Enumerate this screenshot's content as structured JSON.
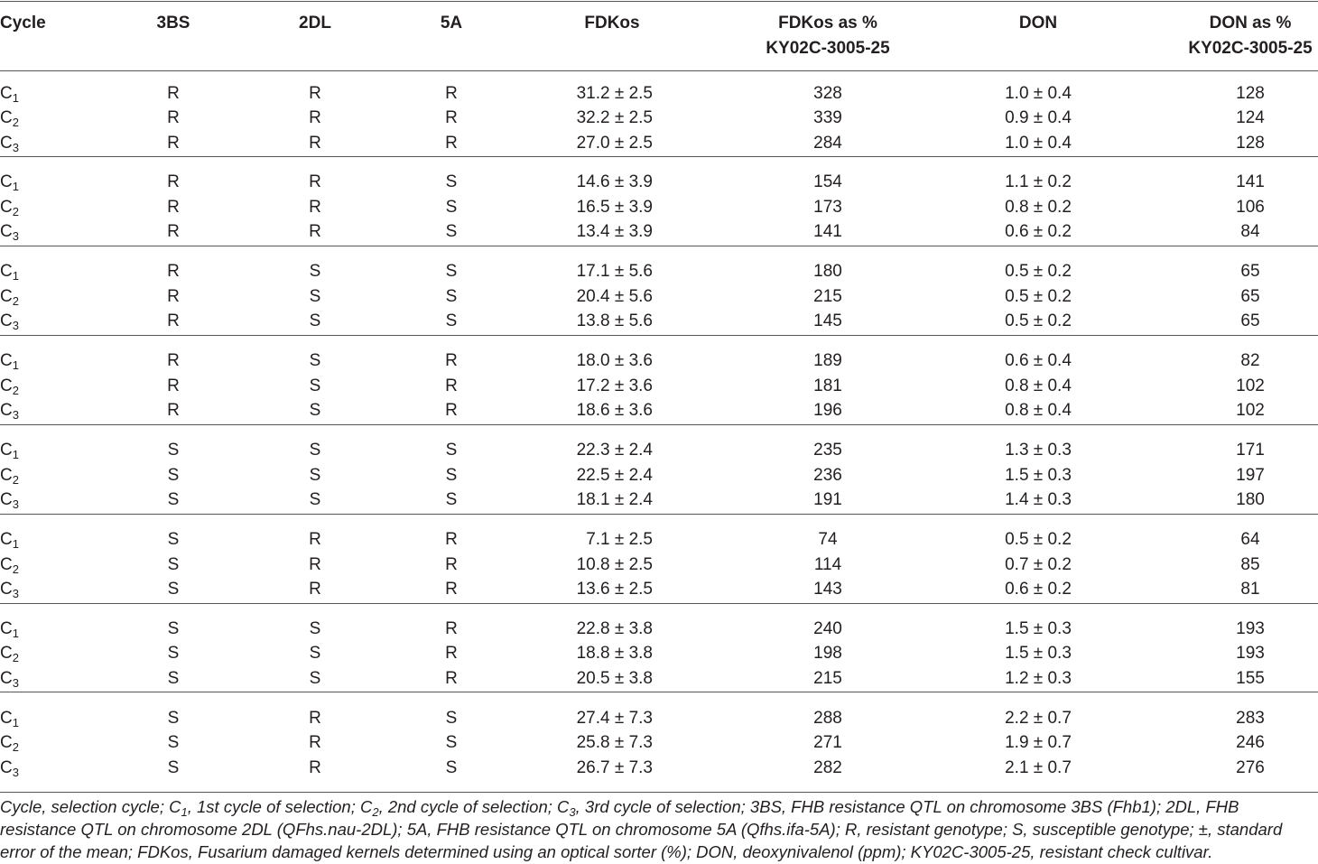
{
  "table": {
    "header": [
      "Cycle",
      "3BS",
      "2DL",
      "5A",
      "FDKos",
      [
        "FDKos as %",
        "KY02C-3005-25"
      ],
      "DON",
      [
        "DON as %",
        "KY02C-3005-25"
      ]
    ],
    "groups": [
      [
        {
          "cycle": {
            "base": "C",
            "sub": "1"
          },
          "cells": [
            "R",
            "R",
            "R",
            "31.2 ± 2.5",
            "328",
            "1.0 ± 0.4",
            "128"
          ]
        },
        {
          "cycle": {
            "base": "C",
            "sub": "2"
          },
          "cells": [
            "R",
            "R",
            "R",
            "32.2 ± 2.5",
            "339",
            "0.9 ± 0.4",
            "124"
          ]
        },
        {
          "cycle": {
            "base": "C",
            "sub": "3"
          },
          "cells": [
            "R",
            "R",
            "R",
            "27.0 ± 2.5",
            "284",
            "1.0 ± 0.4",
            "128"
          ]
        }
      ],
      [
        {
          "cycle": {
            "base": "C",
            "sub": "1"
          },
          "cells": [
            "R",
            "R",
            "S",
            "14.6 ± 3.9",
            "154",
            "1.1 ± 0.2",
            "141"
          ]
        },
        {
          "cycle": {
            "base": "C",
            "sub": "2"
          },
          "cells": [
            "R",
            "R",
            "S",
            "16.5 ± 3.9",
            "173",
            "0.8 ± 0.2",
            "106"
          ]
        },
        {
          "cycle": {
            "base": "C",
            "sub": "3"
          },
          "cells": [
            "R",
            "R",
            "S",
            "13.4 ± 3.9",
            "141",
            "0.6 ± 0.2",
            "84"
          ]
        }
      ],
      [
        {
          "cycle": {
            "base": "C",
            "sub": "1"
          },
          "cells": [
            "R",
            "S",
            "S",
            "17.1 ± 5.6",
            "180",
            "0.5 ± 0.2",
            "65"
          ]
        },
        {
          "cycle": {
            "base": "C",
            "sub": "2"
          },
          "cells": [
            "R",
            "S",
            "S",
            "20.4 ± 5.6",
            "215",
            "0.5 ± 0.2",
            "65"
          ]
        },
        {
          "cycle": {
            "base": "C",
            "sub": "3"
          },
          "cells": [
            "R",
            "S",
            "S",
            "13.8 ± 5.6",
            "145",
            "0.5 ± 0.2",
            "65"
          ]
        }
      ],
      [
        {
          "cycle": {
            "base": "C",
            "sub": "1"
          },
          "cells": [
            "R",
            "S",
            "R",
            "18.0 ± 3.6",
            "189",
            "0.6 ± 0.4",
            "82"
          ]
        },
        {
          "cycle": {
            "base": "C",
            "sub": "2"
          },
          "cells": [
            "R",
            "S",
            "R",
            "17.2 ± 3.6",
            "181",
            "0.8 ± 0.4",
            "102"
          ]
        },
        {
          "cycle": {
            "base": "C",
            "sub": "3"
          },
          "cells": [
            "R",
            "S",
            "R",
            "18.6 ± 3.6",
            "196",
            "0.8 ± 0.4",
            "102"
          ]
        }
      ],
      [
        {
          "cycle": {
            "base": "C",
            "sub": "1"
          },
          "cells": [
            "S",
            "S",
            "S",
            "22.3 ± 2.4",
            "235",
            "1.3 ± 0.3",
            "171"
          ]
        },
        {
          "cycle": {
            "base": "C",
            "sub": "2"
          },
          "cells": [
            "S",
            "S",
            "S",
            "22.5 ± 2.4",
            "236",
            "1.5 ± 0.3",
            "197"
          ]
        },
        {
          "cycle": {
            "base": "C",
            "sub": "3"
          },
          "cells": [
            "S",
            "S",
            "S",
            "18.1 ± 2.4",
            "191",
            "1.4 ± 0.3",
            "180"
          ]
        }
      ],
      [
        {
          "cycle": {
            "base": "C",
            "sub": "1"
          },
          "cells": [
            "S",
            "R",
            "R",
            "7.1 ± 2.5",
            "74",
            "0.5 ± 0.2",
            "64"
          ]
        },
        {
          "cycle": {
            "base": "C",
            "sub": "2"
          },
          "cells": [
            "S",
            "R",
            "R",
            "10.8 ± 2.5",
            "114",
            "0.7 ± 0.2",
            "85"
          ]
        },
        {
          "cycle": {
            "base": "C",
            "sub": "3"
          },
          "cells": [
            "S",
            "R",
            "R",
            "13.6 ± 2.5",
            "143",
            "0.6 ± 0.2",
            "81"
          ]
        }
      ],
      [
        {
          "cycle": {
            "base": "C",
            "sub": "1"
          },
          "cells": [
            "S",
            "S",
            "R",
            "22.8 ± 3.8",
            "240",
            "1.5 ± 0.3",
            "193"
          ]
        },
        {
          "cycle": {
            "base": "C",
            "sub": "2"
          },
          "cells": [
            "S",
            "S",
            "R",
            "18.8 ± 3.8",
            "198",
            "1.5 ± 0.3",
            "193"
          ]
        },
        {
          "cycle": {
            "base": "C",
            "sub": "3"
          },
          "cells": [
            "S",
            "S",
            "R",
            "20.5 ± 3.8",
            "215",
            "1.2 ± 0.3",
            "155"
          ]
        }
      ],
      [
        {
          "cycle": {
            "base": "C",
            "sub": "1"
          },
          "cells": [
            "S",
            "R",
            "S",
            "27.4 ± 7.3",
            "288",
            "2.2 ± 0.7",
            "283"
          ]
        },
        {
          "cycle": {
            "base": "C",
            "sub": "2"
          },
          "cells": [
            "S",
            "R",
            "S",
            "25.8 ± 7.3",
            "271",
            "1.9 ± 0.7",
            "246"
          ]
        },
        {
          "cycle": {
            "base": "C",
            "sub": "3"
          },
          "cells": [
            "S",
            "R",
            "S",
            "26.7 ± 7.3",
            "282",
            "2.1 ± 0.7",
            "276"
          ]
        }
      ]
    ],
    "footnote": [
      "Cycle, selection cycle; C",
      "1",
      ", 1st cycle of selection; C",
      "2",
      ", 2nd cycle of selection; C",
      "3",
      ", 3rd cycle of selection; 3BS, FHB resistance QTL on chromosome 3BS (Fhb1); 2DL, FHB resistance QTL on chromosome 2DL (QFhs.nau-2DL); 5A, FHB resistance QTL on chromosome 5A (Qfhs.ifa-5A); R, resistant genotype; S, susceptible genotype; ±, standard error of the mean; FDKos, Fusarium damaged kernels determined using an optical sorter (%); DON, deoxynivalenol (ppm); KY02C-3005-25, resistant check cultivar."
    ]
  }
}
